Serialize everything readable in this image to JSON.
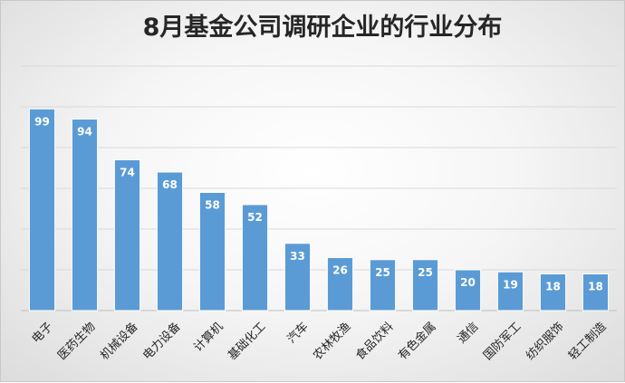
{
  "chart_data": {
    "type": "bar",
    "title": "8月基金公司调研企业的行业分布",
    "categories": [
      "电子",
      "医药生物",
      "机械设备",
      "电力设备",
      "计算机",
      "基础化工",
      "汽车",
      "农林牧渔",
      "食品饮料",
      "有色金属",
      "通信",
      "国防军工",
      "纺织服饰",
      "轻工制造"
    ],
    "values": [
      99,
      94,
      74,
      68,
      58,
      52,
      33,
      26,
      25,
      25,
      20,
      19,
      18,
      18
    ],
    "ylim": [
      0,
      120
    ],
    "y_gridline_step": 20,
    "grid": true,
    "y_tick_labels_shown": false,
    "legend": "none",
    "data_labels": true,
    "bar_color": "#5b9bd5",
    "bar_border_color": "#ffffff",
    "gridline_color": "#d9d9d9"
  }
}
